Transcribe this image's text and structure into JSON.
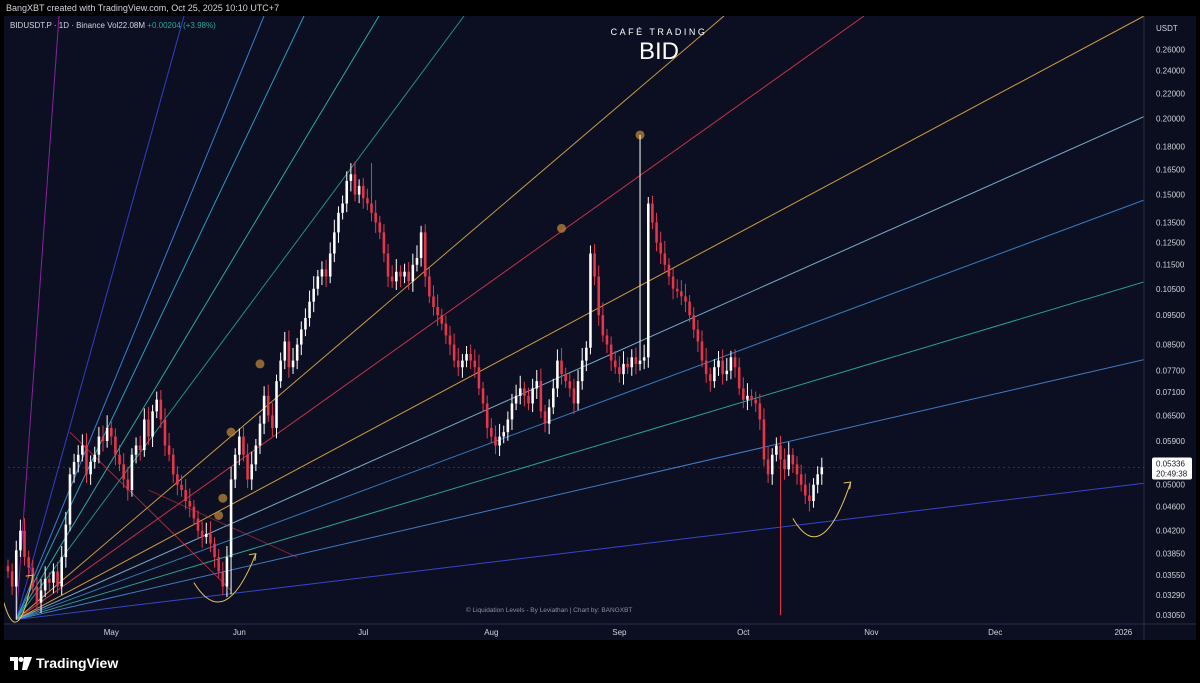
{
  "top_note": "BangXBT created with TradingView.com, Oct 25, 2025 10:10 UTC+7",
  "symbol_info": {
    "symbol": "BIDUSDT.P · 1D · Binance",
    "volume": "Vol22.08M",
    "change": "+0.00204 (+3.98%)"
  },
  "brand": {
    "subtitle": "CAFÉ TRADING",
    "title": "BID"
  },
  "credits": "© Liquidation Levels - By Leviathan | Chart by: BANGXBT",
  "footer": {
    "logo_text": "TradingView"
  },
  "colors": {
    "background": "#0c0f22",
    "up_candle": "#ffffff",
    "down_candle": "#e8354a",
    "price_label_bg": "#ffffff",
    "annotation_arrow": "#e3c35c"
  },
  "chart_data": {
    "type": "candlestick",
    "title": "BID",
    "unit": "USDT",
    "y_scale": "log",
    "ylim": [
      0.0295,
      0.295
    ],
    "y_ticks": [
      "0.26000",
      "0.24000",
      "0.22000",
      "0.20000",
      "0.18000",
      "0.16500",
      "0.15000",
      "0.13500",
      "0.12500",
      "0.11500",
      "0.10500",
      "0.09500",
      "0.08500",
      "0.07700",
      "0.07100",
      "0.06500",
      "0.05900",
      "0.05000",
      "0.04600",
      "0.04200",
      "0.03850",
      "0.03550",
      "0.03290",
      "0.03050"
    ],
    "x_ticks": [
      "May",
      "Jun",
      "Jul",
      "Aug",
      "Sep",
      "Oct",
      "Nov",
      "Dec",
      "2026"
    ],
    "x_range": [
      "2025-04-06",
      "2026-01-06"
    ],
    "current_price": {
      "value": 0.05336,
      "label": "0.05336",
      "countdown": "20:49:38"
    },
    "candles_start_date": "2025-04-06",
    "closes": [
      0.036,
      0.034,
      0.039,
      0.042,
      0.038,
      0.0365,
      0.034,
      0.032,
      0.0335,
      0.035,
      0.0345,
      0.036,
      0.034,
      0.038,
      0.043,
      0.052,
      0.0545,
      0.056,
      0.058,
      0.052,
      0.0545,
      0.056,
      0.06,
      0.059,
      0.062,
      0.06,
      0.056,
      0.054,
      0.051,
      0.049,
      0.056,
      0.058,
      0.057,
      0.064,
      0.06,
      0.066,
      0.069,
      0.064,
      0.058,
      0.056,
      0.052,
      0.05,
      0.049,
      0.047,
      0.046,
      0.044,
      0.042,
      0.041,
      0.0415,
      0.04,
      0.038,
      0.036,
      0.034,
      0.038,
      0.051,
      0.056,
      0.06,
      0.056,
      0.051,
      0.054,
      0.058,
      0.063,
      0.07,
      0.065,
      0.062,
      0.074,
      0.08,
      0.086,
      0.078,
      0.08,
      0.085,
      0.09,
      0.094,
      0.1,
      0.105,
      0.11,
      0.113,
      0.11,
      0.12,
      0.13,
      0.14,
      0.145,
      0.158,
      0.162,
      0.15,
      0.155,
      0.148,
      0.145,
      0.14,
      0.135,
      0.13,
      0.12,
      0.11,
      0.108,
      0.112,
      0.11,
      0.112,
      0.108,
      0.115,
      0.118,
      0.13,
      0.11,
      0.102,
      0.098,
      0.095,
      0.092,
      0.088,
      0.085,
      0.08,
      0.078,
      0.08,
      0.082,
      0.08,
      0.078,
      0.072,
      0.068,
      0.062,
      0.06,
      0.058,
      0.06,
      0.061,
      0.064,
      0.068,
      0.07,
      0.072,
      0.07,
      0.068,
      0.072,
      0.074,
      0.066,
      0.063,
      0.067,
      0.072,
      0.08,
      0.076,
      0.074,
      0.072,
      0.068,
      0.074,
      0.08,
      0.084,
      0.12,
      0.11,
      0.095,
      0.088,
      0.085,
      0.08,
      0.078,
      0.076,
      0.079,
      0.078,
      0.081,
      0.079,
      0.08,
      0.081,
      0.145,
      0.135,
      0.125,
      0.12,
      0.115,
      0.11,
      0.105,
      0.104,
      0.102,
      0.1,
      0.095,
      0.09,
      0.086,
      0.08,
      0.076,
      0.074,
      0.078,
      0.08,
      0.076,
      0.077,
      0.081,
      0.078,
      0.072,
      0.069,
      0.07,
      0.069,
      0.068,
      0.064,
      0.055,
      0.052,
      0.056,
      0.058,
      0.055,
      0.053,
      0.056,
      0.054,
      0.052,
      0.05,
      0.048,
      0.047,
      0.05,
      0.052,
      0.0534
    ],
    "highlights": [
      {
        "date": "2025-04-08",
        "label": "Apr low",
        "price": 0.03
      },
      {
        "date": "2025-05-30",
        "label": "May low",
        "price": 0.033
      },
      {
        "date": "2025-07-03",
        "label": "Jul high",
        "price": 0.169
      },
      {
        "date": "2025-09-06",
        "label": "Sep high",
        "price": 0.188
      },
      {
        "date": "2025-10-10",
        "label": "Oct wick",
        "price": 0.0305
      }
    ],
    "fan_lines": [
      {
        "color": "#9c27b0",
        "end": [
          55,
          0.295
        ]
      },
      {
        "color": "#3a46e0",
        "end": [
          180,
          0.295
        ]
      },
      {
        "color": "#3f8ef5",
        "end": [
          260,
          0.295
        ]
      },
      {
        "color": "#29b6d8",
        "end": [
          300,
          0.295
        ]
      },
      {
        "color": "#2ec4b6",
        "end": [
          375,
          0.295
        ]
      },
      {
        "color": "#26a69a",
        "end": [
          460,
          0.295
        ]
      },
      {
        "color": "#e6b04a",
        "end": [
          720,
          0.295
        ]
      },
      {
        "color": "#e8354a",
        "end": [
          860,
          0.295
        ]
      },
      {
        "color": "#f5b740",
        "end": [
          1140,
          0.295
        ]
      },
      {
        "color": "#8bc5e8",
        "end": [
          1150,
          0.205
        ]
      },
      {
        "color": "#3b8fd8",
        "end": [
          1150,
          0.149
        ]
      },
      {
        "color": "#2fb8a8",
        "end": [
          1150,
          0.109
        ]
      },
      {
        "color": "#4a8ee0",
        "end": [
          1150,
          0.081
        ]
      },
      {
        "color": "#3f50e8",
        "end": [
          1150,
          0.0505
        ]
      }
    ],
    "liquidation_dots": [
      {
        "date": "2025-05-27",
        "price": 0.0445
      },
      {
        "date": "2025-05-28",
        "price": 0.0475
      },
      {
        "date": "2025-05-30",
        "price": 0.061
      },
      {
        "date": "2025-06-06",
        "price": 0.079
      },
      {
        "date": "2025-08-18",
        "price": 0.132
      },
      {
        "date": "2025-09-06",
        "price": 0.188
      }
    ]
  }
}
